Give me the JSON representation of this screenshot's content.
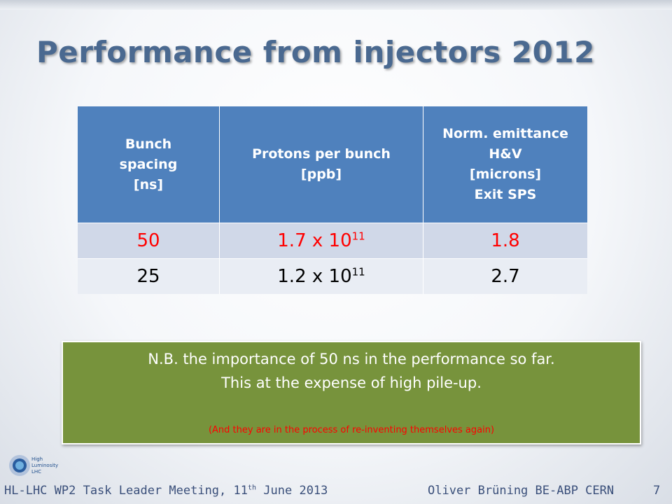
{
  "slide": {
    "title": "Performance from injectors 2012"
  },
  "table": {
    "headers": [
      [
        "Bunch",
        "spacing",
        "[ns]"
      ],
      [
        "Protons per bunch",
        "[ppb]"
      ],
      [
        "Norm. emittance",
        "H&V",
        "[microns]",
        "Exit SPS"
      ]
    ],
    "rows": [
      {
        "spacing": "50",
        "ppb_base": "1.7 x 10",
        "ppb_exp": "11",
        "emittance": "1.8",
        "highlight_color": "#ff0000"
      },
      {
        "spacing": "25",
        "ppb_base": "1.2 x 10",
        "ppb_exp": "11",
        "emittance": "2.7",
        "highlight_color": "#000000"
      }
    ],
    "header_color": "#4f81bd"
  },
  "note": {
    "line1": "N.B. the importance of 50 ns in the performance so far.",
    "line2": "This at the expense of high pile-up.",
    "line3": "(And they are in the process of re-inventing themselves again)",
    "bg_color": "#77933c"
  },
  "logo": {
    "icon": "hl-lhc-logo-icon",
    "text": [
      "High",
      "Luminosity",
      "LHC"
    ]
  },
  "footer": {
    "left_prefix": "HL-LHC WP2 Task Leader Meeting, 11",
    "left_sup": "th",
    "left_suffix": " June 2013",
    "right": "Oliver Brüning BE-ABP CERN",
    "page_number": "7"
  }
}
